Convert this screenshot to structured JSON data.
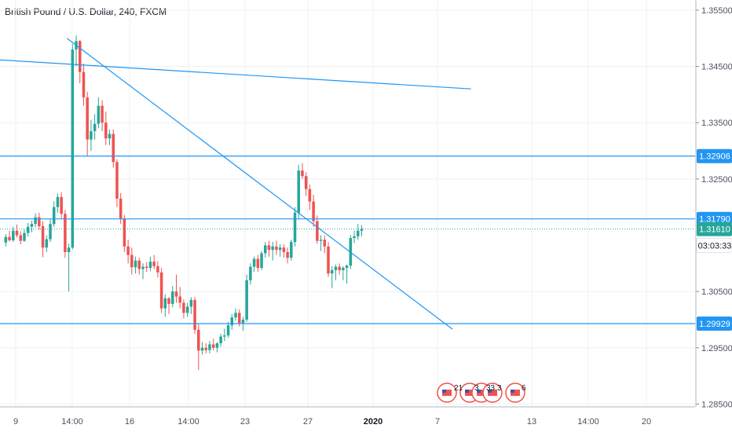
{
  "header": {
    "title": "British Pound / U.S. Dollar, 240, FXCM"
  },
  "colors": {
    "up": "#26a69a",
    "down": "#ef5350",
    "trendline": "#2196f3",
    "hline": "#2196f3",
    "grid": "#eef0f3",
    "axis_text": "#4c525e",
    "current_price_box": "#26a69a"
  },
  "chart_data": {
    "type": "candlestick",
    "title": "British Pound / U.S. Dollar, 240, FXCM",
    "ylim": [
      1.2845,
      1.3568
    ],
    "y_ticks": [
      "1.35500",
      "1.34500",
      "1.33500",
      "1.32500",
      "1.30500",
      "1.29500",
      "1.28500"
    ],
    "x_ticks": [
      "9",
      "14:00",
      "16",
      "14:00",
      "23",
      "27",
      "2020",
      "7",
      "13",
      "14:00",
      "20"
    ],
    "x_ticks_bold": [
      "2020"
    ],
    "price_labels": [
      {
        "value": "1.32906",
        "kind": "level"
      },
      {
        "value": "1.31790",
        "kind": "level"
      },
      {
        "value": "1.31610",
        "kind": "current"
      },
      {
        "value": "03:03:33",
        "kind": "countdown"
      },
      {
        "value": "1.29929",
        "kind": "level"
      }
    ],
    "horizontal_levels": [
      1.32906,
      1.3179,
      1.29929
    ],
    "current_price": 1.3161,
    "trendlines": [
      {
        "from": {
          "bar": -17,
          "price": 1.3468
        },
        "to": {
          "bar": 126,
          "price": 1.341
        }
      },
      {
        "from": {
          "bar": 17,
          "price": 1.35
        },
        "to": {
          "bar": 121,
          "price": 1.2983
        }
      }
    ],
    "candles": [
      [
        1.3137,
        1.3152,
        1.313,
        1.3147
      ],
      [
        1.3147,
        1.3158,
        1.3139,
        1.3141
      ],
      [
        1.3141,
        1.3165,
        1.3138,
        1.3158
      ],
      [
        1.3158,
        1.3169,
        1.3146,
        1.315
      ],
      [
        1.315,
        1.3157,
        1.3134,
        1.314
      ],
      [
        1.314,
        1.316,
        1.3138,
        1.3154
      ],
      [
        1.3154,
        1.3172,
        1.3148,
        1.3165
      ],
      [
        1.3165,
        1.3176,
        1.3155,
        1.317
      ],
      [
        1.317,
        1.3189,
        1.3164,
        1.3182
      ],
      [
        1.3182,
        1.319,
        1.316,
        1.3166
      ],
      [
        1.3166,
        1.3175,
        1.3111,
        1.3128
      ],
      [
        1.3128,
        1.315,
        1.312,
        1.3143
      ],
      [
        1.3143,
        1.3178,
        1.3138,
        1.317
      ],
      [
        1.317,
        1.321,
        1.3165,
        1.32
      ],
      [
        1.32,
        1.3224,
        1.319,
        1.3218
      ],
      [
        1.3218,
        1.3226,
        1.318,
        1.3188
      ],
      [
        1.3188,
        1.3195,
        1.311,
        1.312
      ],
      [
        1.312,
        1.3135,
        1.305,
        1.3128
      ],
      [
        1.3128,
        1.349,
        1.3125,
        1.348
      ],
      [
        1.348,
        1.3505,
        1.345,
        1.3495
      ],
      [
        1.3495,
        1.3497,
        1.342,
        1.344
      ],
      [
        1.344,
        1.3455,
        1.338,
        1.3395
      ],
      [
        1.3395,
        1.3405,
        1.329,
        1.332
      ],
      [
        1.332,
        1.3355,
        1.33,
        1.3335
      ],
      [
        1.3335,
        1.3365,
        1.332,
        1.3348
      ],
      [
        1.3348,
        1.3395,
        1.334,
        1.338
      ],
      [
        1.338,
        1.339,
        1.3335,
        1.335
      ],
      [
        1.335,
        1.337,
        1.331,
        1.3322
      ],
      [
        1.3322,
        1.3338,
        1.331,
        1.333
      ],
      [
        1.333,
        1.3338,
        1.327,
        1.328
      ],
      [
        1.328,
        1.3285,
        1.32,
        1.3215
      ],
      [
        1.3215,
        1.3225,
        1.317,
        1.318
      ],
      [
        1.318,
        1.3186,
        1.312,
        1.313
      ],
      [
        1.313,
        1.3142,
        1.31,
        1.3115
      ],
      [
        1.3115,
        1.3128,
        1.308,
        1.3093
      ],
      [
        1.3093,
        1.3112,
        1.3082,
        1.3105
      ],
      [
        1.3105,
        1.311,
        1.308,
        1.309
      ],
      [
        1.309,
        1.31,
        1.3072,
        1.3094
      ],
      [
        1.3094,
        1.3102,
        1.3085,
        1.3092
      ],
      [
        1.3092,
        1.3112,
        1.3086,
        1.3103
      ],
      [
        1.3103,
        1.3115,
        1.309,
        1.3095
      ],
      [
        1.3095,
        1.3104,
        1.3075,
        1.3084
      ],
      [
        1.3084,
        1.3092,
        1.3012,
        1.302
      ],
      [
        1.302,
        1.3045,
        1.3005,
        1.3038
      ],
      [
        1.3038,
        1.304,
        1.301,
        1.3028
      ],
      [
        1.3028,
        1.306,
        1.3022,
        1.305
      ],
      [
        1.305,
        1.308,
        1.303,
        1.3041
      ],
      [
        1.3041,
        1.3058,
        1.302,
        1.303
      ],
      [
        1.303,
        1.3036,
        1.3002,
        1.3012
      ],
      [
        1.3012,
        1.303,
        1.3005,
        1.3023
      ],
      [
        1.3023,
        1.304,
        1.301,
        1.3035
      ],
      [
        1.3035,
        1.304,
        1.2975,
        1.2982
      ],
      [
        1.2982,
        1.2992,
        1.291,
        1.2945
      ],
      [
        1.2945,
        1.296,
        1.2938,
        1.295
      ],
      [
        1.295,
        1.2958,
        1.294,
        1.2946
      ],
      [
        1.2946,
        1.2962,
        1.294,
        1.2956
      ],
      [
        1.2956,
        1.2966,
        1.2945,
        1.295
      ],
      [
        1.295,
        1.296,
        1.2942,
        1.2958
      ],
      [
        1.2958,
        1.2975,
        1.2952,
        1.297
      ],
      [
        1.297,
        1.2984,
        1.2962,
        1.2972
      ],
      [
        1.2972,
        1.2996,
        1.2968,
        1.299
      ],
      [
        1.299,
        1.301,
        1.2982,
        1.3004
      ],
      [
        1.3004,
        1.302,
        1.2998,
        1.3012
      ],
      [
        1.3012,
        1.3018,
        1.2988,
        1.2994
      ],
      [
        1.2994,
        1.3005,
        1.298,
        1.3
      ],
      [
        1.3,
        1.308,
        1.2996,
        1.307
      ],
      [
        1.307,
        1.31,
        1.3062,
        1.3094
      ],
      [
        1.3094,
        1.3112,
        1.3085,
        1.3108
      ],
      [
        1.3108,
        1.3115,
        1.3085,
        1.3092
      ],
      [
        1.3092,
        1.3122,
        1.3088,
        1.3118
      ],
      [
        1.3118,
        1.3138,
        1.311,
        1.3132
      ],
      [
        1.3132,
        1.314,
        1.3112,
        1.3124
      ],
      [
        1.3124,
        1.3138,
        1.3105,
        1.313
      ],
      [
        1.313,
        1.314,
        1.3115,
        1.3124
      ],
      [
        1.3124,
        1.3134,
        1.3112,
        1.3128
      ],
      [
        1.3128,
        1.3134,
        1.311,
        1.312
      ],
      [
        1.312,
        1.3128,
        1.31,
        1.311
      ],
      [
        1.311,
        1.3142,
        1.3105,
        1.3138
      ],
      [
        1.3138,
        1.32,
        1.313,
        1.319
      ],
      [
        1.319,
        1.3275,
        1.318,
        1.3265
      ],
      [
        1.3265,
        1.3278,
        1.325,
        1.3255
      ],
      [
        1.3255,
        1.3262,
        1.322,
        1.3232
      ],
      [
        1.3232,
        1.324,
        1.3195,
        1.321
      ],
      [
        1.321,
        1.3222,
        1.3165,
        1.3175
      ],
      [
        1.3175,
        1.3185,
        1.3135,
        1.314
      ],
      [
        1.314,
        1.315,
        1.3122,
        1.3142
      ],
      [
        1.3142,
        1.315,
        1.3118,
        1.313
      ],
      [
        1.313,
        1.3138,
        1.3076,
        1.3082
      ],
      [
        1.3082,
        1.3095,
        1.3056,
        1.3088
      ],
      [
        1.3088,
        1.3098,
        1.307,
        1.3094
      ],
      [
        1.3094,
        1.31,
        1.308,
        1.3088
      ],
      [
        1.3088,
        1.3095,
        1.307,
        1.3092
      ],
      [
        1.3092,
        1.3098,
        1.3064,
        1.3096
      ],
      [
        1.3096,
        1.315,
        1.309,
        1.3145
      ],
      [
        1.3145,
        1.3158,
        1.3136,
        1.3148
      ],
      [
        1.3148,
        1.317,
        1.3142,
        1.3158
      ],
      [
        1.3158,
        1.3168,
        1.3148,
        1.3161
      ]
    ],
    "event_markers": [
      {
        "label": "21"
      },
      {
        "label": "3"
      },
      {
        "label": "3"
      },
      {
        "label": "3"
      },
      {
        "label": "3"
      },
      {
        "label": "6"
      }
    ]
  }
}
